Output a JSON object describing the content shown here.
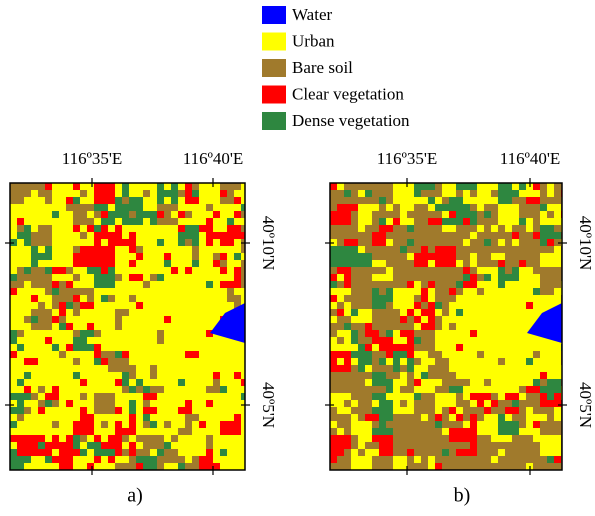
{
  "legend": [
    {
      "label": "Water",
      "color": "#0000ff"
    },
    {
      "label": "Urban",
      "color": "#ffff00"
    },
    {
      "label": "Bare soil",
      "color": "#a07a2c"
    },
    {
      "label": "Clear vegetation",
      "color": "#ff0000"
    },
    {
      "label": "Dense vegetation",
      "color": "#2e8740"
    }
  ],
  "panels": [
    {
      "label": "a)",
      "x_ticks": [
        "116º35'E",
        "116º40'E"
      ],
      "y_ticks": [
        "40º10'N",
        "40º5'N"
      ]
    },
    {
      "label": "b)",
      "x_ticks": [
        "116º35'E",
        "116º40'E"
      ],
      "y_ticks": [
        "40º10'N",
        "40º5'N"
      ]
    }
  ]
}
